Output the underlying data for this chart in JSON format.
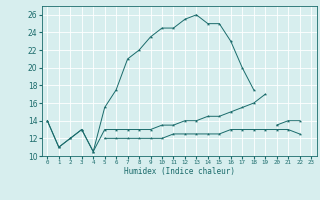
{
  "xlabel": "Humidex (Indice chaleur)",
  "x": [
    0,
    1,
    2,
    3,
    4,
    5,
    6,
    7,
    8,
    9,
    10,
    11,
    12,
    13,
    14,
    15,
    16,
    17,
    18,
    19,
    20,
    21,
    22,
    23
  ],
  "line1": [
    14,
    11,
    12,
    13,
    10.5,
    15.5,
    17.5,
    21,
    22,
    23.5,
    24.5,
    24.5,
    25.5,
    26,
    25,
    25,
    23,
    20,
    17.5,
    null,
    null,
    null,
    null,
    null
  ],
  "line2": [
    14,
    11,
    12,
    13,
    10.5,
    13,
    13,
    13,
    13,
    13,
    13.5,
    13.5,
    14,
    14,
    14.5,
    14.5,
    15,
    15.5,
    16,
    17,
    null,
    null,
    null,
    null
  ],
  "line3": [
    null,
    null,
    null,
    null,
    null,
    12,
    12,
    12,
    12,
    12,
    12,
    12.5,
    12.5,
    12.5,
    12.5,
    12.5,
    13,
    13,
    13,
    13,
    13,
    13,
    12.5,
    null
  ],
  "line4": [
    null,
    null,
    null,
    null,
    null,
    null,
    null,
    null,
    null,
    null,
    null,
    null,
    null,
    null,
    null,
    null,
    null,
    null,
    null,
    null,
    13.5,
    14,
    14,
    null
  ],
  "ylim": [
    10,
    27
  ],
  "xlim": [
    -0.5,
    23.5
  ],
  "yticks": [
    10,
    12,
    14,
    16,
    18,
    20,
    22,
    24,
    26
  ],
  "xticks": [
    0,
    1,
    2,
    3,
    4,
    5,
    6,
    7,
    8,
    9,
    10,
    11,
    12,
    13,
    14,
    15,
    16,
    17,
    18,
    19,
    20,
    21,
    22,
    23
  ],
  "line_color": "#1a6b6b",
  "bg_color": "#d7eeee",
  "grid_color": "#ffffff"
}
